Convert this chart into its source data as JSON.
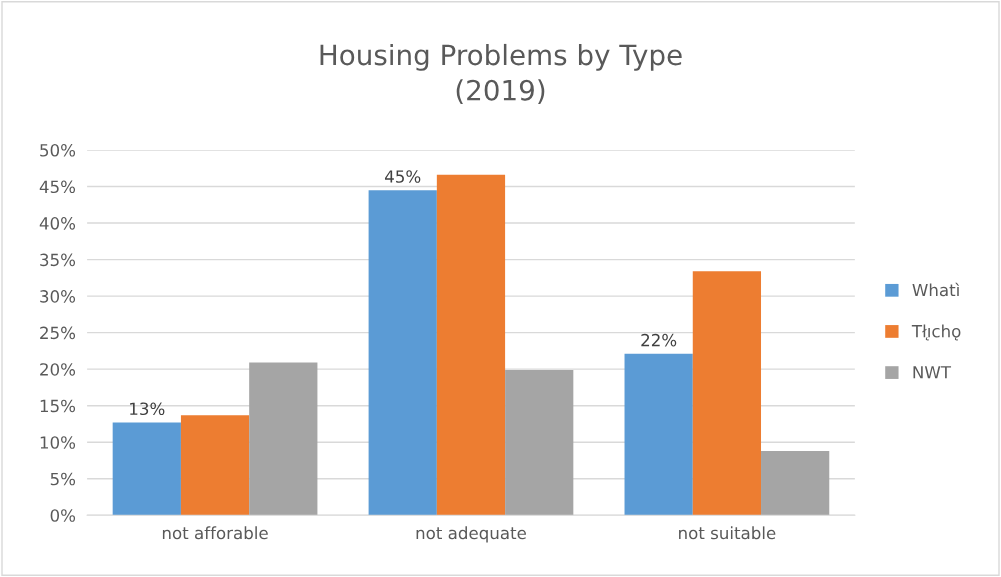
{
  "chart_data": {
    "type": "bar",
    "title": "Housing Problems by Type\n(2019)",
    "categories": [
      "not afforable",
      "not adequate",
      "not suitable"
    ],
    "series": [
      {
        "name": "Whatì",
        "color": "#5b9bd5",
        "values": [
          12.7,
          44.5,
          22.1
        ],
        "value_labels": [
          "13%",
          "45%",
          "22%"
        ]
      },
      {
        "name": "Tłı̨chǫ",
        "color": "#ed7d31",
        "values": [
          13.7,
          46.6,
          33.4
        ]
      },
      {
        "name": "NWT",
        "color": "#a5a5a5",
        "values": [
          20.9,
          19.9,
          8.8
        ]
      }
    ],
    "ylim": [
      0,
      50
    ],
    "yticks": [
      {
        "value": 0,
        "label": "0%"
      },
      {
        "value": 5,
        "label": "5%"
      },
      {
        "value": 10,
        "label": "10%"
      },
      {
        "value": 15,
        "label": "15%"
      },
      {
        "value": 20,
        "label": "20%"
      },
      {
        "value": 25,
        "label": "25%"
      },
      {
        "value": 30,
        "label": "30%"
      },
      {
        "value": 35,
        "label": "35%"
      },
      {
        "value": 40,
        "label": "40%"
      },
      {
        "value": 45,
        "label": "45%"
      },
      {
        "value": 50,
        "label": "50%"
      }
    ],
    "grid": "y",
    "legend": "right"
  }
}
